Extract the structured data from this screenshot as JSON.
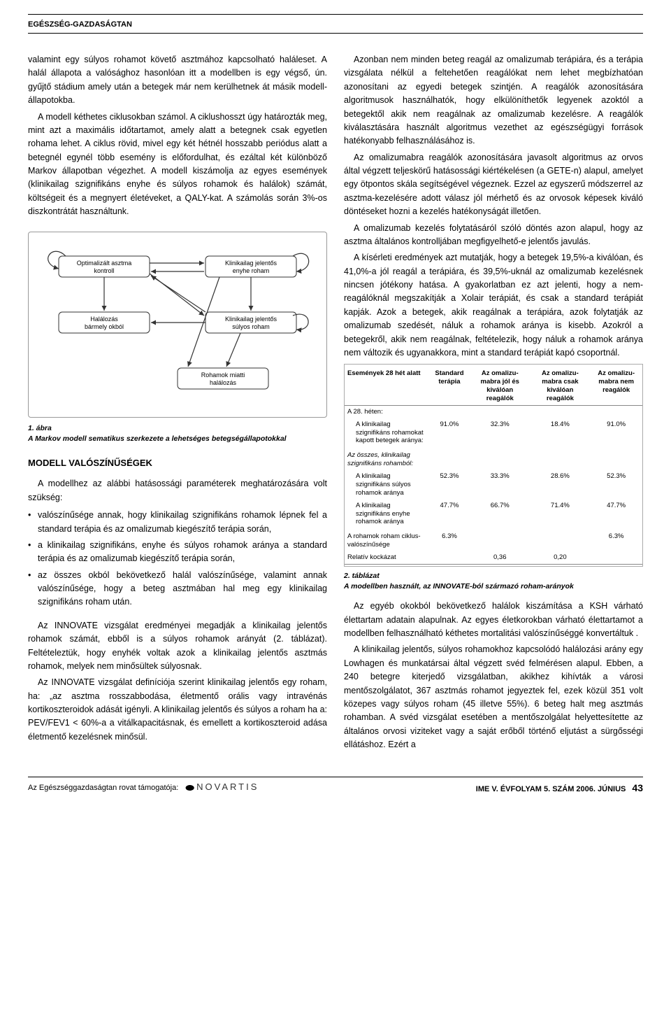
{
  "header": {
    "section_title": "EGÉSZSÉG-GAZDASÁGTAN"
  },
  "left": {
    "p1": "valamint egy súlyos rohamot követő asztmához kapcsolható haláleset. A halál állapota a valósághoz hasonlóan itt a modellben is egy végső, ún. gyűjtő stádium amely után a betegek már nem kerülhetnek át másik modell-állapotokba.",
    "p2": "A modell kéthetes ciklusokban számol. A ciklushosszt úgy határozták meg, mint azt a maximális időtartamot, amely alatt a betegnek csak egyetlen rohama lehet. A ciklus rövid, mivel egy két hétnél hosszabb periódus alatt a betegnél egynél több esemény is előfordulhat, és ezáltal két különböző Markov állapotban végezhet. A modell kiszámolja az egyes események (klinikailag szignifikáns enyhe és súlyos rohamok és halálok) számát, költségeit és a megnyert életéveket, a QALY-kat. A számolás során 3%-os diszkontrátát használtunk.",
    "fig1": {
      "title": "1. ábra",
      "caption": "A Markov modell sematikus szerkezete a lehetséges betegségállapotokkal",
      "states": {
        "s1": "Optimalizált asztma kontroll",
        "s2": "Klinikailag jelentős enyhe roham",
        "s3": "Halálozás bármely okból",
        "s4": "Klinikailag jelentős súlyos roham",
        "s5": "Rohamok miatti halálozás"
      }
    },
    "section_heading": "MODELL VALÓSZÍNŰSÉGEK",
    "p3": "A modellhez az alábbi hatásossági paraméterek meghatározására volt szükség:",
    "bullets": [
      "valószínűsége annak, hogy klinikailag szignifikáns rohamok lépnek fel a standard terápia és az omalizumab kiegészítő terápia során,",
      "a klinikailag szignifikáns, enyhe és súlyos rohamok aránya a standard terápia és az omalizumab kiegészítő terápia során,",
      "az összes okból bekövetkező halál valószínűsége, valamint annak valószínűsége, hogy a beteg asztmában hal meg egy klinikailag szignifikáns roham után."
    ],
    "p4": "Az INNOVATE vizsgálat eredményei megadják a klinikailag jelentős rohamok számát, ebből is a súlyos rohamok arányát (2. táblázat). Feltételeztük, hogy enyhék voltak azok a klinikailag jelentős asztmás rohamok, melyek nem minősültek súlyosnak.",
    "p5": "Az INNOVATE vizsgálat definíciója szerint klinikailag jelentős egy roham, ha: „az asztma rosszabbodása, életmentő orális vagy intravénás kortikoszteroidok adását igényli. A klinikailag jelentős és súlyos a roham ha a: PEV/FEV1 < 60%-a a vitálkapacitásnak, és emellett a kortikoszteroid adása életmentő kezelésnek minősül."
  },
  "right": {
    "p1": "Azonban nem minden beteg reagál az omalizumab terápiára, és a terápia vizsgálata nélkül a feltehetően reagálókat nem lehet megbízhatóan azonosítani az egyedi betegek szintjén. A reagálók azonosítására algoritmusok használhatók, hogy elkülöníthetők legyenek azoktól a betegektől akik nem reagálnak az omalizumab kezelésre. A reagálók kiválasztására használt algoritmus vezethet az egészségügyi források hatékonyabb felhasználásához is.",
    "p2": "Az omalizumabra reagálók azonosítására javasolt algoritmus az orvos által végzett teljeskörű hatásossági kiértékelésen (a GETE-n) alapul, amelyet egy ötpontos skála segítségével végeznek. Ezzel az egyszerű módszerrel az asztma-kezelésére adott válasz jól mérhető és az orvosok képesek kiváló döntéseket hozni a kezelés hatékonyságát illetően.",
    "p3": "A omalizumab kezelés folytatásáról szóló döntés azon alapul, hogy az asztma általános kontrolljában megfigyelhető-e jelentős javulás.",
    "p4": "A kísérleti eredmények azt mutatják, hogy a betegek 19,5%-a kiválóan, és 41,0%-a jól reagál a terápiára, és 39,5%-uknál az omalizumab kezelésnek nincsen jótékony hatása. A gyakorlatban ez azt jelenti, hogy a nem-reagálóknál megszakítják a Xolair terápiát, és csak a standard terápiát kapják. Azok a betegek, akik reagálnak a terápiára, azok folytatják az omalizumab szedését, náluk a rohamok aránya is kisebb. Azokról a betegekről, akik nem reagálnak, feltételezik, hogy náluk a rohamok aránya nem változik és ugyanakkora, mint a standard terápiát kapó csoportnál.",
    "table2": {
      "headers": [
        "Események 28 hét alatt",
        "Standard terápia",
        "Az omalizu-mabra jól és kiválóan reagálók",
        "Az omalizu-mabra csak kiválóan reagálók",
        "Az omalizu-mabra nem reagálók"
      ],
      "rows": [
        {
          "label": "A 28. héten:",
          "cells": [
            "",
            "",
            "",
            ""
          ]
        },
        {
          "label": "A klinikailag szignifikáns rohamokat kapott betegek aránya:",
          "cells": [
            "91.0%",
            "32.3%",
            "18.4%",
            "91.0%"
          ],
          "sub": true
        },
        {
          "label": "Az összes, klinikailag szignifikáns rohamból:",
          "cells": [
            "",
            "",
            "",
            ""
          ],
          "emph": true,
          "sec": true
        },
        {
          "label": "A klinikailag szignifikáns súlyos rohamok aránya",
          "cells": [
            "52.3%",
            "33.3%",
            "28.6%",
            "52.3%"
          ],
          "sub": true
        },
        {
          "label": "A klinikailag szignifikáns enyhe rohamok aránya",
          "cells": [
            "47.7%",
            "66.7%",
            "71.4%",
            "47.7%"
          ],
          "sub": true
        },
        {
          "label": "A rohamok roham ciklus-valószínűsége",
          "cells": [
            "6.3%",
            "",
            "",
            "6.3%"
          ],
          "sec": true
        },
        {
          "label": "Relatív kockázat",
          "cells": [
            "",
            "0,36",
            "0,20",
            ""
          ],
          "last": true
        }
      ],
      "caption_num": "2. táblázat",
      "caption": "A modellben használt, az INNOVATE-ból származó roham-arányok"
    },
    "p5": "Az egyéb okokból bekövetkező halálok kiszámítása a KSH várható élettartam adatain alapulnak. Az egyes életkorokban várható élettartamot a modellben felhasználható kéthetes mortalitási valószínűséggé konvertáltuk .",
    "p6": "A klinikailag jelentős, súlyos rohamokhoz kapcsolódó halálozási arány egy Lowhagen és munkatársai által végzett svéd felmérésen alapul. Ebben, a 240 betegre kiterjedő vizsgálatban, akikhez kihívták a városi mentőszolgálatot, 367 asztmás rohamot jegyeztek fel, ezek közül 351 volt közepes vagy súlyos roham (45 illetve 55%). 6 beteg halt meg asztmás rohamban. A svéd vizsgálat esetében a mentőszolgálat helyettesítette az általános orvosi viziteket vagy a saját erőből történő eljutást a sürgősségi ellátáshoz. Ezért a"
  },
  "footer": {
    "sponsor_text": "Az Egészséggazdaságtan rovat támogatója:",
    "sponsor_name": "NOVARTIS",
    "issue": "IME V. ÉVFOLYAM 5. SZÁM 2006. JÚNIUS",
    "page": "43"
  }
}
